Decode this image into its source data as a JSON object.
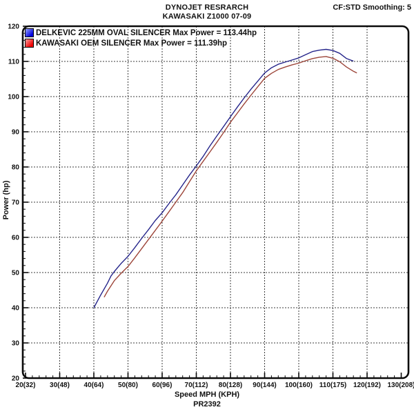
{
  "header": {
    "title": "DYNOJET RESRARCH",
    "subtitle": "KAWASAKI Z1000 07-09",
    "smoothing": "CF:STD Smoothing: 5"
  },
  "legend": [
    {
      "label": "DELKEVIC 225MM OVAL SILENCER Max Power = 113.44hp",
      "swatch_color": "#0000dd",
      "swatch_light": "#99a6ff"
    },
    {
      "label": "KAWASAKI OEM SILENCER Max Power = 111.39hp",
      "swatch_color": "#ee0000",
      "swatch_light": "#ffa0a0"
    }
  ],
  "footer": {
    "xlabel": "Speed MPH (KPH)",
    "run_id": "PR2392"
  },
  "chart_data": {
    "type": "line",
    "title": "DYNOJET RESRARCH",
    "subtitle": "KAWASAKI Z1000 07-09",
    "xlabel": "Speed MPH (KPH)",
    "ylabel": "Power (hp)",
    "xlim": [
      20,
      130
    ],
    "ylim": [
      20,
      120
    ],
    "grid": "dashed",
    "legend_position": "top-left",
    "x_ticks": [
      {
        "mph": 20,
        "label": "20(32)"
      },
      {
        "mph": 30,
        "label": "30(48)"
      },
      {
        "mph": 40,
        "label": "40(64)"
      },
      {
        "mph": 50,
        "label": "50(80)"
      },
      {
        "mph": 60,
        "label": "60(96)"
      },
      {
        "mph": 70,
        "label": "70(112)"
      },
      {
        "mph": 80,
        "label": "80(128)"
      },
      {
        "mph": 90,
        "label": "90(144)"
      },
      {
        "mph": 100,
        "label": "100(160)"
      },
      {
        "mph": 110,
        "label": "110(175)"
      },
      {
        "mph": 120,
        "label": "120(192)"
      },
      {
        "mph": 130,
        "label": "130(208)"
      }
    ],
    "y_ticks": [
      20,
      30,
      40,
      50,
      60,
      70,
      80,
      90,
      100,
      110,
      120
    ],
    "minor_tick_step": 2,
    "series": [
      {
        "name": "DELKEVIC 225MM OVAL SILENCER",
        "max_power_hp": 113.44,
        "color": "#24248a",
        "points": [
          [
            40,
            40
          ],
          [
            42,
            43.6
          ],
          [
            44,
            47
          ],
          [
            45,
            49
          ],
          [
            46,
            50.3
          ],
          [
            48,
            52.6
          ],
          [
            50,
            54.6
          ],
          [
            52,
            57.1
          ],
          [
            54,
            59.7
          ],
          [
            56,
            62.2
          ],
          [
            58,
            64.8
          ],
          [
            60,
            67
          ],
          [
            62,
            69.6
          ],
          [
            64,
            72.1
          ],
          [
            66,
            74.9
          ],
          [
            68,
            77.7
          ],
          [
            70,
            80.3
          ],
          [
            72,
            83
          ],
          [
            74,
            86
          ],
          [
            76,
            88.8
          ],
          [
            78,
            91.5
          ],
          [
            80,
            94.3
          ],
          [
            82,
            97
          ],
          [
            84,
            99.6
          ],
          [
            86,
            102.1
          ],
          [
            88,
            104.4
          ],
          [
            90,
            106.7
          ],
          [
            92,
            108.2
          ],
          [
            94,
            109.2
          ],
          [
            96,
            109.8
          ],
          [
            98,
            110.4
          ],
          [
            100,
            111
          ],
          [
            102,
            111.9
          ],
          [
            104,
            112.8
          ],
          [
            106,
            113.2
          ],
          [
            108,
            113.44
          ],
          [
            110,
            113.1
          ],
          [
            112,
            112.3
          ],
          [
            114,
            110.8
          ],
          [
            116,
            110.1
          ]
        ]
      },
      {
        "name": "KAWASAKI OEM SILENCER",
        "max_power_hp": 111.39,
        "color": "#9c4438",
        "points": [
          [
            43,
            43
          ],
          [
            44,
            44.7
          ],
          [
            46,
            47.7
          ],
          [
            48,
            49.8
          ],
          [
            50,
            51.7
          ],
          [
            52,
            54.2
          ],
          [
            54,
            56.8
          ],
          [
            56,
            59.4
          ],
          [
            58,
            62
          ],
          [
            60,
            64.6
          ],
          [
            62,
            67.3
          ],
          [
            64,
            70
          ],
          [
            66,
            72.7
          ],
          [
            68,
            75.8
          ],
          [
            70,
            78.9
          ],
          [
            72,
            81.6
          ],
          [
            74,
            84.3
          ],
          [
            76,
            87
          ],
          [
            78,
            89.8
          ],
          [
            80,
            92.7
          ],
          [
            82,
            95.3
          ],
          [
            84,
            97.9
          ],
          [
            86,
            100.4
          ],
          [
            88,
            102.8
          ],
          [
            90,
            105.2
          ],
          [
            92,
            106.6
          ],
          [
            94,
            107.7
          ],
          [
            96,
            108.4
          ],
          [
            98,
            109
          ],
          [
            100,
            109.5
          ],
          [
            102,
            110.2
          ],
          [
            104,
            110.8
          ],
          [
            106,
            111.2
          ],
          [
            108,
            111.39
          ],
          [
            110,
            110.9
          ],
          [
            112,
            109.9
          ],
          [
            114,
            108.4
          ],
          [
            116,
            107.2
          ],
          [
            117,
            106.7
          ]
        ]
      }
    ]
  }
}
